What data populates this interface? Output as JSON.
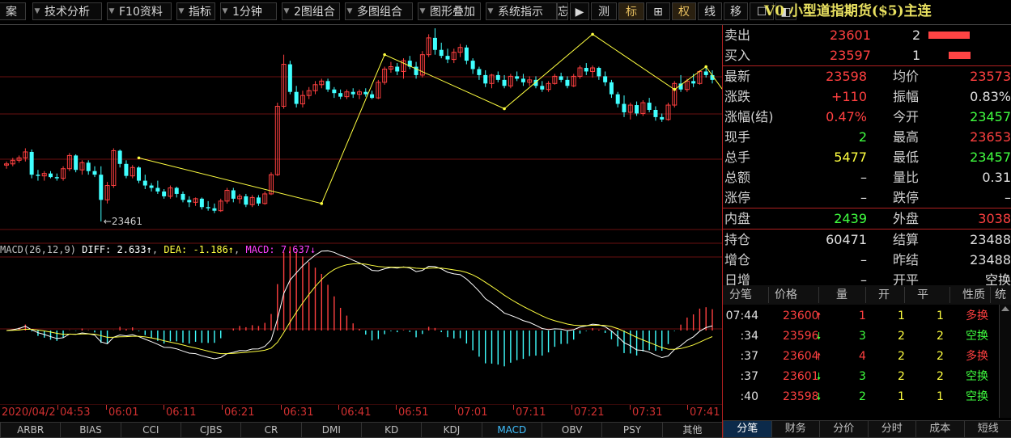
{
  "toolbar": {
    "items": [
      {
        "label": "案",
        "highlight": false
      },
      {
        "label": "技术分析",
        "highlight": false
      },
      {
        "label": "F10资料",
        "highlight": false
      },
      {
        "label": "指标",
        "highlight": false
      },
      {
        "label": "1分钟",
        "highlight": false
      },
      {
        "label": "2图组合",
        "highlight": false
      },
      {
        "label": "多图组合",
        "highlight": false
      },
      {
        "label": "图形叠加",
        "highlight": false
      },
      {
        "label": "系统指示",
        "highlight": false
      },
      {
        "label": "忘",
        "highlight": false
      },
      {
        "label": "▶",
        "highlight": false
      },
      {
        "label": "测",
        "highlight": false
      },
      {
        "label": "标",
        "highlight": true
      },
      {
        "label": "⊞",
        "highlight": false
      },
      {
        "label": "权",
        "highlight": true
      },
      {
        "label": "线",
        "highlight": false
      },
      {
        "label": "移",
        "highlight": false
      },
      {
        "label": "☐",
        "highlight": false
      },
      {
        "label": "◧",
        "highlight": false
      }
    ],
    "title": "V0 小型道指期货($5)主连"
  },
  "chart_data": {
    "type": "candlestick",
    "low_annotation": "←23461",
    "time_labels": [
      "2020/04/2",
      "04:53",
      "06:01",
      "06:11",
      "06:21",
      "06:31",
      "06:41",
      "06:51",
      "07:01",
      "07:11",
      "07:21",
      "07:31",
      "07:41"
    ],
    "candles_ohlc": [
      [
        23508,
        23511,
        23505,
        23509
      ],
      [
        23509,
        23514,
        23507,
        23512
      ],
      [
        23512,
        23516,
        23510,
        23514
      ],
      [
        23514,
        23522,
        23511,
        23519
      ],
      [
        23519,
        23521,
        23497,
        23500
      ],
      [
        23500,
        23504,
        23495,
        23499
      ],
      [
        23499,
        23503,
        23495,
        23501
      ],
      [
        23501,
        23503,
        23497,
        23498
      ],
      [
        23498,
        23501,
        23495,
        23497
      ],
      [
        23497,
        23507,
        23495,
        23505
      ],
      [
        23505,
        23518,
        23503,
        23516
      ],
      [
        23516,
        23517,
        23502,
        23504
      ],
      [
        23504,
        23512,
        23500,
        23510
      ],
      [
        23510,
        23512,
        23500,
        23503
      ],
      [
        23503,
        23507,
        23498,
        23500
      ],
      [
        23500,
        23507,
        23461,
        23479
      ],
      [
        23479,
        23494,
        23476,
        23491
      ],
      [
        23491,
        23522,
        23489,
        23520
      ],
      [
        23520,
        23521,
        23506,
        23509
      ],
      [
        23509,
        23512,
        23497,
        23499
      ],
      [
        23499,
        23508,
        23497,
        23506
      ],
      [
        23506,
        23507,
        23493,
        23495
      ],
      [
        23495,
        23500,
        23488,
        23491
      ],
      [
        23491,
        23493,
        23486,
        23489
      ],
      [
        23489,
        23495,
        23484,
        23486
      ],
      [
        23486,
        23488,
        23480,
        23482
      ],
      [
        23482,
        23491,
        23480,
        23489
      ],
      [
        23489,
        23490,
        23481,
        23484
      ],
      [
        23484,
        23486,
        23477,
        23479
      ],
      [
        23479,
        23482,
        23473,
        23477
      ],
      [
        23477,
        23481,
        23474,
        23480
      ],
      [
        23480,
        23481,
        23471,
        23473
      ],
      [
        23473,
        23478,
        23470,
        23472
      ],
      [
        23472,
        23476,
        23468,
        23470
      ],
      [
        23470,
        23480,
        23469,
        23478
      ],
      [
        23478,
        23489,
        23476,
        23487
      ],
      [
        23487,
        23489,
        23477,
        23480
      ],
      [
        23480,
        23484,
        23476,
        23482
      ],
      [
        23482,
        23484,
        23473,
        23475
      ],
      [
        23475,
        23483,
        23473,
        23481
      ],
      [
        23481,
        23483,
        23474,
        23476
      ],
      [
        23476,
        23486,
        23475,
        23484
      ],
      [
        23484,
        23502,
        23483,
        23500
      ],
      [
        23500,
        23560,
        23499,
        23557
      ],
      [
        23557,
        23600,
        23555,
        23592
      ],
      [
        23592,
        23595,
        23567,
        23569
      ],
      [
        23569,
        23574,
        23556,
        23559
      ],
      [
        23559,
        23570,
        23556,
        23566
      ],
      [
        23566,
        23573,
        23563,
        23570
      ],
      [
        23570,
        23578,
        23567,
        23575
      ],
      [
        23575,
        23580,
        23572,
        23578
      ],
      [
        23578,
        23580,
        23569,
        23571
      ],
      [
        23571,
        23573,
        23564,
        23568
      ],
      [
        23568,
        23571,
        23563,
        23565
      ],
      [
        23565,
        23571,
        23563,
        23569
      ],
      [
        23569,
        23572,
        23564,
        23567
      ],
      [
        23567,
        23571,
        23563,
        23569
      ],
      [
        23569,
        23572,
        23565,
        23567
      ],
      [
        23567,
        23570,
        23563,
        23564
      ],
      [
        23564,
        23579,
        23563,
        23577
      ],
      [
        23577,
        23590,
        23575,
        23588
      ],
      [
        23588,
        23594,
        23585,
        23590
      ],
      [
        23590,
        23593,
        23583,
        23586
      ],
      [
        23586,
        23597,
        23580,
        23595
      ],
      [
        23595,
        23599,
        23588,
        23590
      ],
      [
        23590,
        23594,
        23580,
        23583
      ],
      [
        23583,
        23603,
        23581,
        23600
      ],
      [
        23600,
        23617,
        23598,
        23614
      ],
      [
        23614,
        23622,
        23600,
        23604
      ],
      [
        23604,
        23610,
        23597,
        23599
      ],
      [
        23599,
        23605,
        23593,
        23596
      ],
      [
        23596,
        23605,
        23593,
        23602
      ],
      [
        23602,
        23609,
        23598,
        23606
      ],
      [
        23606,
        23608,
        23592,
        23595
      ],
      [
        23595,
        23597,
        23584,
        23588
      ],
      [
        23588,
        23590,
        23579,
        23583
      ],
      [
        23583,
        23587,
        23573,
        23576
      ],
      [
        23576,
        23584,
        23572,
        23583
      ],
      [
        23583,
        23586,
        23577,
        23579
      ],
      [
        23579,
        23583,
        23572,
        23574
      ],
      [
        23574,
        23584,
        23572,
        23582
      ],
      [
        23582,
        23586,
        23578,
        23580
      ],
      [
        23580,
        23584,
        23574,
        23577
      ],
      [
        23577,
        23582,
        23574,
        23579
      ],
      [
        23579,
        23582,
        23572,
        23574
      ],
      [
        23574,
        23578,
        23569,
        23571
      ],
      [
        23571,
        23578,
        23569,
        23576
      ],
      [
        23576,
        23584,
        23575,
        23582
      ],
      [
        23582,
        23585,
        23577,
        23579
      ],
      [
        23579,
        23582,
        23572,
        23574
      ],
      [
        23574,
        23584,
        23573,
        23582
      ],
      [
        23582,
        23591,
        23580,
        23589
      ],
      [
        23589,
        23593,
        23583,
        23586
      ],
      [
        23586,
        23591,
        23581,
        23589
      ],
      [
        23589,
        23590,
        23579,
        23582
      ],
      [
        23582,
        23586,
        23574,
        23577
      ],
      [
        23577,
        23579,
        23564,
        23567
      ],
      [
        23567,
        23569,
        23556,
        23559
      ],
      [
        23559,
        23566,
        23548,
        23552
      ],
      [
        23552,
        23560,
        23546,
        23558
      ],
      [
        23558,
        23561,
        23549,
        23551
      ],
      [
        23551,
        23562,
        23549,
        23560
      ],
      [
        23560,
        23564,
        23552,
        23554
      ],
      [
        23554,
        23557,
        23545,
        23548
      ],
      [
        23548,
        23551,
        23544,
        23546
      ],
      [
        23546,
        23560,
        23545,
        23558
      ],
      [
        23558,
        23578,
        23556,
        23576
      ],
      [
        23576,
        23583,
        23569,
        23571
      ],
      [
        23571,
        23580,
        23569,
        23578
      ],
      [
        23578,
        23584,
        23573,
        23576
      ],
      [
        23576,
        23587,
        23575,
        23586
      ],
      [
        23586,
        23590,
        23581,
        23583
      ],
      [
        23583,
        23587,
        23576,
        23579
      ]
    ],
    "zigzag": [
      [
        21,
        23514
      ],
      [
        50,
        23476
      ],
      [
        60,
        23600
      ],
      [
        79,
        23555
      ],
      [
        93,
        23617
      ],
      [
        106,
        23571
      ],
      [
        111,
        23590
      ],
      [
        115,
        23561
      ],
      [
        120,
        23552
      ],
      [
        127,
        23586
      ]
    ],
    "price_range": [
      23455,
      23622
    ],
    "macd_label": {
      "name": "MACD(26,12,9)",
      "diff": "DIFF: 2.633↑",
      "dea": "DEA: -1.186↑",
      "macd": "MACD: 7.637↓"
    },
    "colors": {
      "up": "#ff4040",
      "down": "#40ffff",
      "zigzag": "#ffff40",
      "diff": "#ffffff",
      "dea": "#ffff40",
      "grid": "#6a1010"
    }
  },
  "indicators": [
    "ARBR",
    "BIAS",
    "CCI",
    "CJBS",
    "CR",
    "DMI",
    "KD",
    "KDJ",
    "MACD",
    "OBV",
    "PSY",
    "其他"
  ],
  "active_indicator": "MACD",
  "quote": {
    "sell": {
      "label": "卖出",
      "price": "23601",
      "vol": "2",
      "bar": 0.85
    },
    "buy": {
      "label": "买入",
      "price": "23597",
      "vol": "1",
      "bar": 0.45
    },
    "rows": [
      {
        "l1": "最新",
        "v1": "23598",
        "c1": "red",
        "l2": "均价",
        "v2": "23573",
        "c2": "red"
      },
      {
        "l1": "涨跌",
        "v1": "+110",
        "c1": "red",
        "l2": "振幅",
        "v2": "0.83%",
        "c2": "wht"
      },
      {
        "l1": "涨幅(结)",
        "v1": "0.47%",
        "c1": "red",
        "l2": "今开",
        "v2": "23457",
        "c2": "grn"
      },
      {
        "l1": "现手",
        "v1": "2",
        "c1": "grn",
        "l2": "最高",
        "v2": "23653",
        "c2": "red"
      },
      {
        "l1": "总手",
        "v1": "5477",
        "c1": "yel",
        "l2": "最低",
        "v2": "23457",
        "c2": "grn"
      },
      {
        "l1": "总额",
        "v1": "–",
        "c1": "wht",
        "l2": "量比",
        "v2": "0.31",
        "c2": "wht"
      },
      {
        "l1": "涨停",
        "v1": "–",
        "c1": "wht",
        "l2": "跌停",
        "v2": "–",
        "c2": "wht"
      },
      {
        "l1": "内盘",
        "v1": "2439",
        "c1": "grn",
        "l2": "外盘",
        "v2": "3038",
        "c2": "red"
      },
      {
        "l1": "持仓",
        "v1": "60471",
        "c1": "wht",
        "l2": "结算",
        "v2": "23488",
        "c2": "wht"
      },
      {
        "l1": "增仓",
        "v1": "–",
        "c1": "wht",
        "l2": "昨结",
        "v2": "23488",
        "c2": "wht"
      },
      {
        "l1": "日增",
        "v1": "–",
        "c1": "wht",
        "l2": "开平",
        "v2": "空换",
        "c2": "wht"
      }
    ]
  },
  "ticks": {
    "headers": [
      "分笔",
      "价格",
      "量",
      "开",
      "平",
      "性质",
      "统"
    ],
    "rows": [
      {
        "time": "07:44",
        "price": "23600",
        "dir": "up",
        "vol": "1",
        "open": "1",
        "close": "1",
        "nature": "多换"
      },
      {
        "time": ":34",
        "price": "23596",
        "dir": "down",
        "vol": "3",
        "open": "2",
        "close": "2",
        "nature": "空换"
      },
      {
        "time": ":37",
        "price": "23604",
        "dir": "up",
        "vol": "4",
        "open": "2",
        "close": "2",
        "nature": "多换"
      },
      {
        "time": ":37",
        "price": "23601",
        "dir": "down",
        "vol": "3",
        "open": "2",
        "close": "2",
        "nature": "空换"
      },
      {
        "time": ":40",
        "price": "23598",
        "dir": "down",
        "vol": "2",
        "open": "1",
        "close": "1",
        "nature": "空换"
      }
    ]
  },
  "bottom_tabs": [
    "分笔",
    "财务",
    "分价",
    "分时",
    "成本",
    "短线"
  ],
  "active_bottom_tab": "分笔"
}
